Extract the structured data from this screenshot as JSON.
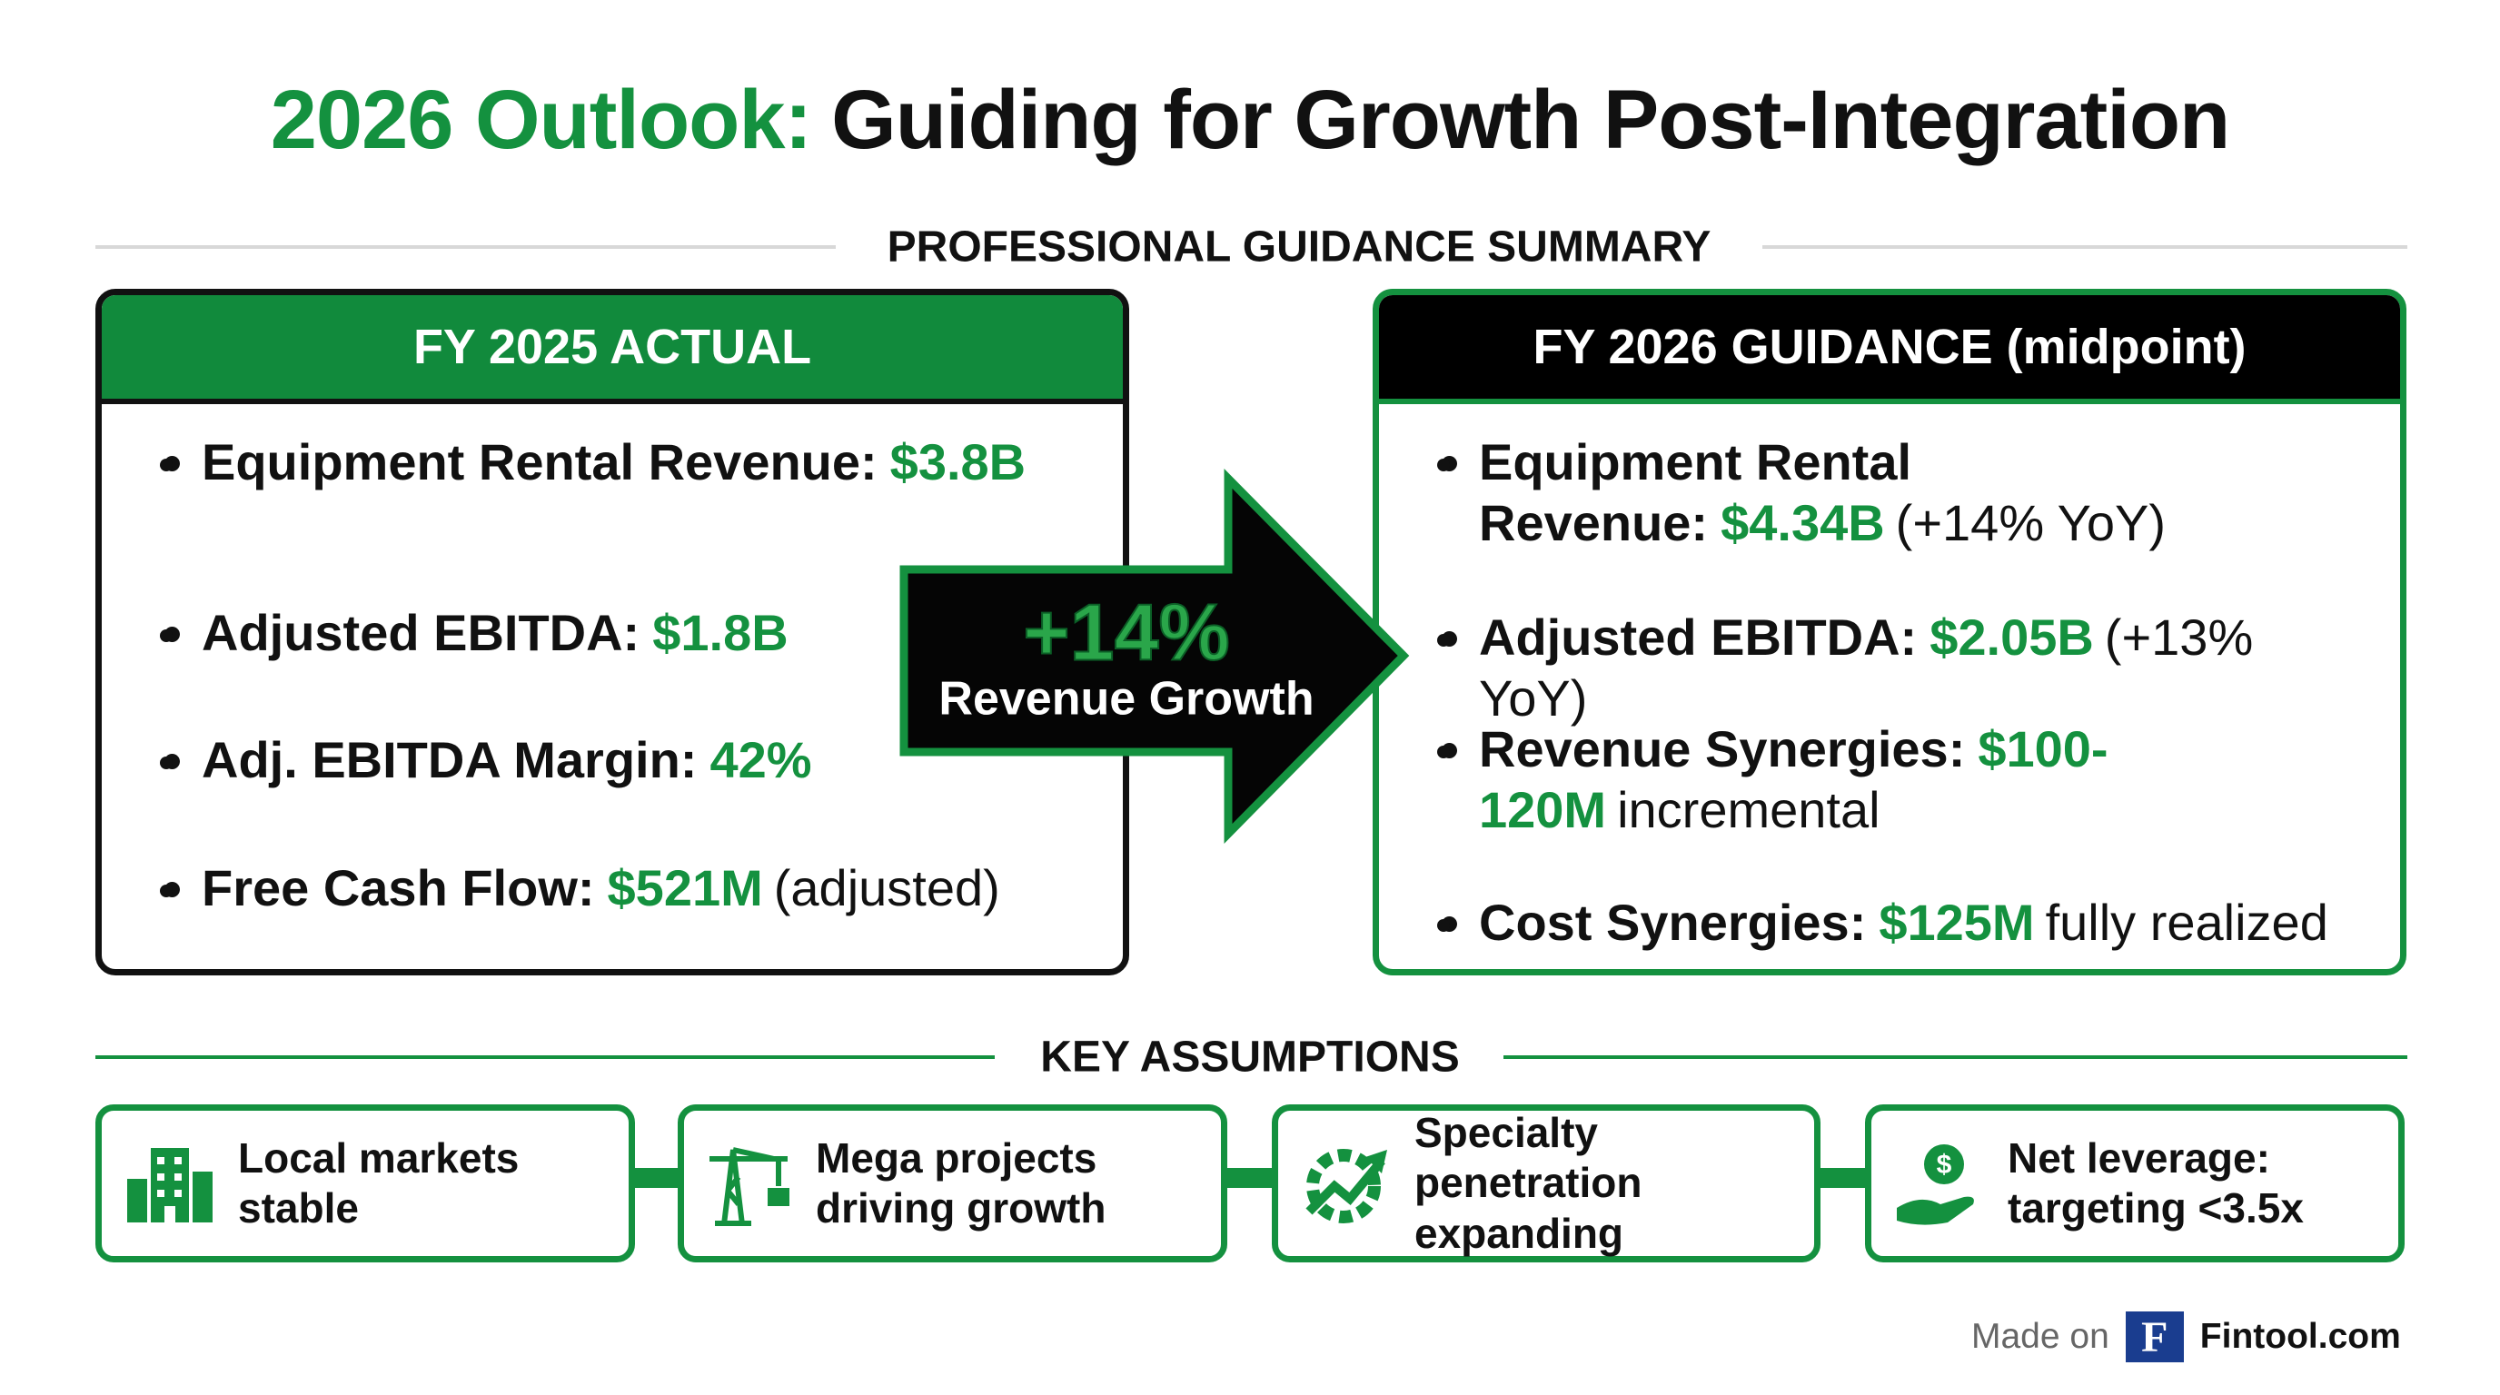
{
  "header": {
    "title_highlight": "2026 Outlook:",
    "title_rest": "Guiding for Growth Post-Integration",
    "subtitle": "PROFESSIONAL GUIDANCE SUMMARY"
  },
  "left_panel": {
    "title": "FY 2025 ACTUAL",
    "items": [
      {
        "label": "Equipment Rental Revenue:",
        "value": "$3.8B"
      },
      {
        "label": "Adjusted EBITDA:",
        "value": "$1.8B"
      },
      {
        "label": "Adj. EBITDA Margin:",
        "value": "42%"
      },
      {
        "label": "Free Cash Flow:",
        "value": "$521M",
        "note": "(adjusted)"
      }
    ]
  },
  "arrow": {
    "value": "+14%",
    "label": "Revenue Growth"
  },
  "right_panel": {
    "title": "FY 2026 GUIDANCE (midpoint)",
    "items": [
      {
        "label": "Equipment Rental Revenue:",
        "value": "$4.34B",
        "note": "(+14% YoY)"
      },
      {
        "label": "Adjusted EBITDA:",
        "value": "$2.05B",
        "note": "(+13% YoY)"
      },
      {
        "label": "Revenue Synergies:",
        "value": "$100-120M",
        "note": "incremental"
      },
      {
        "label": "Cost Synergies:",
        "value": "$125M",
        "note": "fully realized"
      }
    ]
  },
  "assumptions": {
    "title": "KEY ASSUMPTIONS",
    "items": [
      "Local markets stable",
      "Mega projects driving growth",
      "Specialty penetration expanding",
      "Net leverage: targeting <3.5x"
    ]
  },
  "footer": {
    "made_on": "Made on",
    "logo": "F",
    "brand": "Fintool.com"
  }
}
